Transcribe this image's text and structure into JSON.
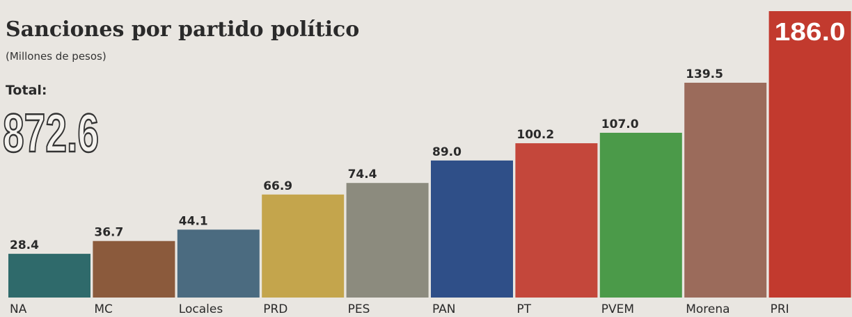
{
  "chart_data": {
    "type": "bar",
    "title": "Sanciones por partido político",
    "subtitle": "(Millones de pesos)",
    "total_label": "Total:",
    "total": 872.6,
    "categories": [
      "NA",
      "MC",
      "Locales",
      "PRD",
      "PES",
      "PAN",
      "PT",
      "PVEM",
      "Morena",
      "PRI"
    ],
    "values": [
      28.4,
      36.7,
      44.1,
      66.9,
      74.4,
      89.0,
      100.2,
      107.0,
      139.5,
      186.0
    ],
    "value_labels": [
      "28.4",
      "36.7",
      "44.1",
      "66.9",
      "74.4",
      "89.0",
      "100.2",
      "107.0",
      "139.5",
      "186.0"
    ],
    "colors": [
      "#2f6a6b",
      "#8b5a3c",
      "#4b6b80",
      "#c4a54c",
      "#8c8b7e",
      "#2f4f88",
      "#c4473b",
      "#4b9a49",
      "#9b6b5b",
      "#c23a2e"
    ]
  }
}
